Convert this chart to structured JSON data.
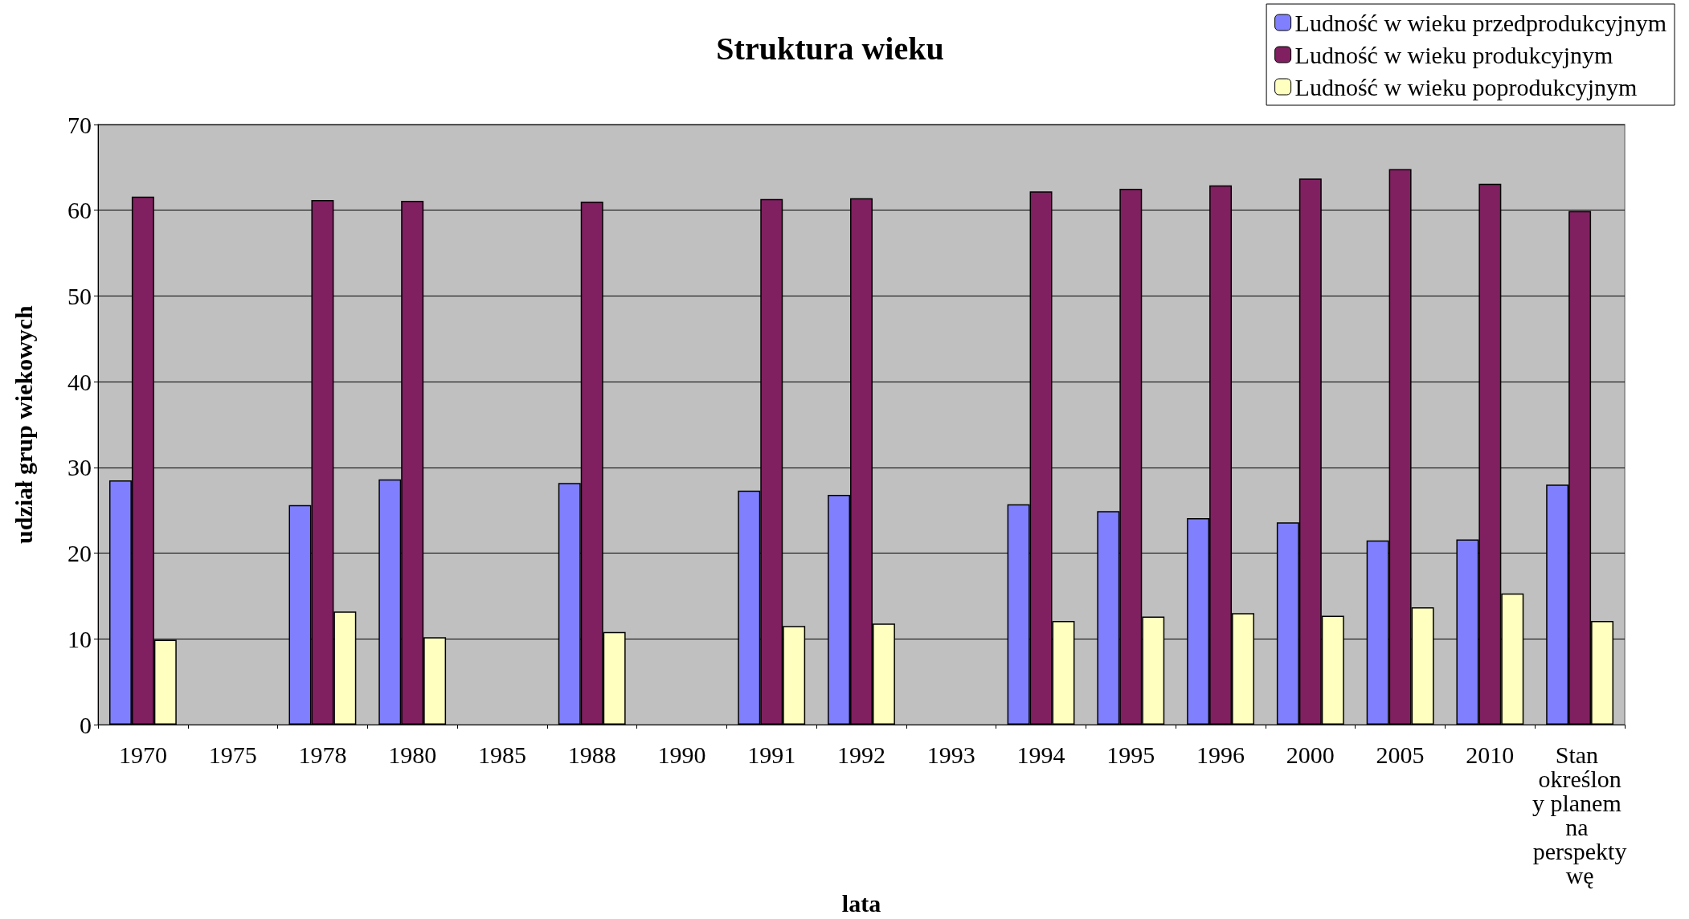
{
  "chart_data": {
    "type": "bar",
    "title": "Struktura wieku",
    "xlabel": "lata",
    "ylabel": "udział grup wiekowych",
    "categories": [
      "1970",
      "1975",
      "1978",
      "1980",
      "1985",
      "1988",
      "1990",
      "1991",
      "1992",
      "1993",
      "1994",
      "1995",
      "1996",
      "2000",
      "2005",
      "2010",
      "Stan określony planem na perspektywę"
    ],
    "series": [
      {
        "name": "Ludność w wieku przedprodukcyjnym",
        "color": "#8080ff",
        "values": [
          28.5,
          null,
          25.6,
          28.6,
          null,
          28.2,
          null,
          27.3,
          26.8,
          null,
          25.7,
          24.9,
          24.1,
          23.6,
          21.5,
          21.6,
          28.0
        ]
      },
      {
        "name": "Ludność w wieku produkcyjnym",
        "color": "#802060",
        "values": [
          61.6,
          null,
          61.2,
          61.1,
          null,
          61.0,
          null,
          61.3,
          61.4,
          null,
          62.2,
          62.5,
          62.9,
          63.7,
          64.8,
          63.1,
          59.9
        ]
      },
      {
        "name": "Ludność w wieku poprodukcyjnym",
        "color": "#ffffc0",
        "values": [
          9.9,
          null,
          13.2,
          10.2,
          null,
          10.8,
          null,
          11.5,
          11.8,
          null,
          12.1,
          12.6,
          13.0,
          12.7,
          13.7,
          15.3,
          12.1
        ]
      }
    ],
    "ylim": [
      0,
      70
    ],
    "yticks": [
      0,
      10,
      20,
      30,
      40,
      50,
      60,
      70
    ],
    "grid": "y",
    "legend": "top right"
  }
}
